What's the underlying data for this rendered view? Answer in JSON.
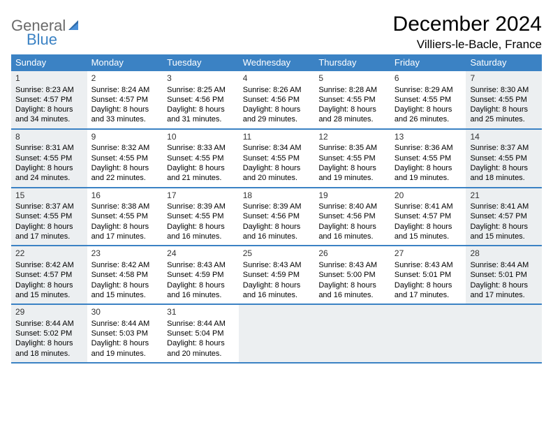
{
  "logo": {
    "part1": "General",
    "part2": "Blue"
  },
  "title": "December 2024",
  "location": "Villiers-le-Bacle, France",
  "header_color": "#3b82c4",
  "shaded_bg": "#eceff1",
  "day_names": [
    "Sunday",
    "Monday",
    "Tuesday",
    "Wednesday",
    "Thursday",
    "Friday",
    "Saturday"
  ],
  "weeks": [
    [
      {
        "n": "1",
        "sunrise": "8:23 AM",
        "sunset": "4:57 PM",
        "dh": "8",
        "dm": "34"
      },
      {
        "n": "2",
        "sunrise": "8:24 AM",
        "sunset": "4:57 PM",
        "dh": "8",
        "dm": "33"
      },
      {
        "n": "3",
        "sunrise": "8:25 AM",
        "sunset": "4:56 PM",
        "dh": "8",
        "dm": "31"
      },
      {
        "n": "4",
        "sunrise": "8:26 AM",
        "sunset": "4:56 PM",
        "dh": "8",
        "dm": "29"
      },
      {
        "n": "5",
        "sunrise": "8:28 AM",
        "sunset": "4:55 PM",
        "dh": "8",
        "dm": "28"
      },
      {
        "n": "6",
        "sunrise": "8:29 AM",
        "sunset": "4:55 PM",
        "dh": "8",
        "dm": "26"
      },
      {
        "n": "7",
        "sunrise": "8:30 AM",
        "sunset": "4:55 PM",
        "dh": "8",
        "dm": "25"
      }
    ],
    [
      {
        "n": "8",
        "sunrise": "8:31 AM",
        "sunset": "4:55 PM",
        "dh": "8",
        "dm": "24"
      },
      {
        "n": "9",
        "sunrise": "8:32 AM",
        "sunset": "4:55 PM",
        "dh": "8",
        "dm": "22"
      },
      {
        "n": "10",
        "sunrise": "8:33 AM",
        "sunset": "4:55 PM",
        "dh": "8",
        "dm": "21"
      },
      {
        "n": "11",
        "sunrise": "8:34 AM",
        "sunset": "4:55 PM",
        "dh": "8",
        "dm": "20"
      },
      {
        "n": "12",
        "sunrise": "8:35 AM",
        "sunset": "4:55 PM",
        "dh": "8",
        "dm": "19"
      },
      {
        "n": "13",
        "sunrise": "8:36 AM",
        "sunset": "4:55 PM",
        "dh": "8",
        "dm": "19"
      },
      {
        "n": "14",
        "sunrise": "8:37 AM",
        "sunset": "4:55 PM",
        "dh": "8",
        "dm": "18"
      }
    ],
    [
      {
        "n": "15",
        "sunrise": "8:37 AM",
        "sunset": "4:55 PM",
        "dh": "8",
        "dm": "17"
      },
      {
        "n": "16",
        "sunrise": "8:38 AM",
        "sunset": "4:55 PM",
        "dh": "8",
        "dm": "17"
      },
      {
        "n": "17",
        "sunrise": "8:39 AM",
        "sunset": "4:55 PM",
        "dh": "8",
        "dm": "16"
      },
      {
        "n": "18",
        "sunrise": "8:39 AM",
        "sunset": "4:56 PM",
        "dh": "8",
        "dm": "16"
      },
      {
        "n": "19",
        "sunrise": "8:40 AM",
        "sunset": "4:56 PM",
        "dh": "8",
        "dm": "16"
      },
      {
        "n": "20",
        "sunrise": "8:41 AM",
        "sunset": "4:57 PM",
        "dh": "8",
        "dm": "15"
      },
      {
        "n": "21",
        "sunrise": "8:41 AM",
        "sunset": "4:57 PM",
        "dh": "8",
        "dm": "15"
      }
    ],
    [
      {
        "n": "22",
        "sunrise": "8:42 AM",
        "sunset": "4:57 PM",
        "dh": "8",
        "dm": "15"
      },
      {
        "n": "23",
        "sunrise": "8:42 AM",
        "sunset": "4:58 PM",
        "dh": "8",
        "dm": "15"
      },
      {
        "n": "24",
        "sunrise": "8:43 AM",
        "sunset": "4:59 PM",
        "dh": "8",
        "dm": "16"
      },
      {
        "n": "25",
        "sunrise": "8:43 AM",
        "sunset": "4:59 PM",
        "dh": "8",
        "dm": "16"
      },
      {
        "n": "26",
        "sunrise": "8:43 AM",
        "sunset": "5:00 PM",
        "dh": "8",
        "dm": "16"
      },
      {
        "n": "27",
        "sunrise": "8:43 AM",
        "sunset": "5:01 PM",
        "dh": "8",
        "dm": "17"
      },
      {
        "n": "28",
        "sunrise": "8:44 AM",
        "sunset": "5:01 PM",
        "dh": "8",
        "dm": "17"
      }
    ],
    [
      {
        "n": "29",
        "sunrise": "8:44 AM",
        "sunset": "5:02 PM",
        "dh": "8",
        "dm": "18"
      },
      {
        "n": "30",
        "sunrise": "8:44 AM",
        "sunset": "5:03 PM",
        "dh": "8",
        "dm": "19"
      },
      {
        "n": "31",
        "sunrise": "8:44 AM",
        "sunset": "5:04 PM",
        "dh": "8",
        "dm": "20"
      },
      null,
      null,
      null,
      null
    ]
  ],
  "labels": {
    "sunrise_prefix": "Sunrise: ",
    "sunset_prefix": "Sunset: ",
    "daylight_prefix": "Daylight: ",
    "hours_word": " hours",
    "and_word": "and ",
    "minutes_word": " minutes."
  }
}
